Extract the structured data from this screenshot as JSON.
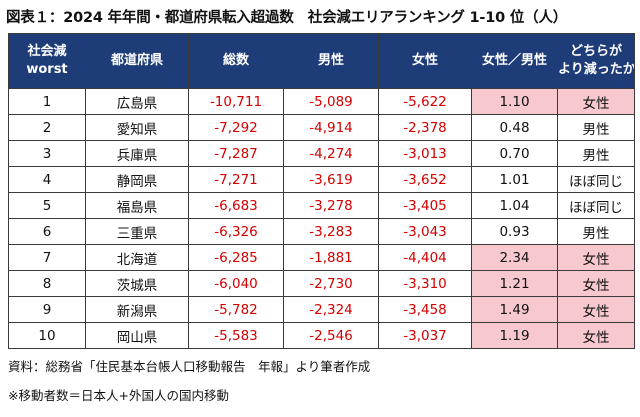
{
  "title": "図表１：2024 年年間・都道府県転入超過数　社会減エリアランキング 1-10 位（人）",
  "headers": {
    "rank_line1": "社会減",
    "rank_line2": "worst",
    "pref": "都道府県",
    "total": "総数",
    "male": "男性",
    "female": "女性",
    "ratio": "女性／男性",
    "which_line1": "どちらが",
    "which_line2": "より減ったか"
  },
  "rows": [
    {
      "rank": "1",
      "pref": "広島県",
      "total": "-10,711",
      "male": "-5,089",
      "female": "-5,622",
      "ratio": "1.10",
      "which": "女性",
      "highlight": true
    },
    {
      "rank": "2",
      "pref": "愛知県",
      "total": "-7,292",
      "male": "-4,914",
      "female": "-2,378",
      "ratio": "0.48",
      "which": "男性",
      "highlight": false
    },
    {
      "rank": "3",
      "pref": "兵庫県",
      "total": "-7,287",
      "male": "-4,274",
      "female": "-3,013",
      "ratio": "0.70",
      "which": "男性",
      "highlight": false
    },
    {
      "rank": "4",
      "pref": "静岡県",
      "total": "-7,271",
      "male": "-3,619",
      "female": "-3,652",
      "ratio": "1.01",
      "which": "ほぼ同じ",
      "highlight": false
    },
    {
      "rank": "5",
      "pref": "福島県",
      "total": "-6,683",
      "male": "-3,278",
      "female": "-3,405",
      "ratio": "1.04",
      "which": "ほぼ同じ",
      "highlight": false
    },
    {
      "rank": "6",
      "pref": "三重県",
      "total": "-6,326",
      "male": "-3,283",
      "female": "-3,043",
      "ratio": "0.93",
      "which": "男性",
      "highlight": false
    },
    {
      "rank": "7",
      "pref": "北海道",
      "total": "-6,285",
      "male": "-1,881",
      "female": "-4,404",
      "ratio": "2.34",
      "which": "女性",
      "highlight": true
    },
    {
      "rank": "8",
      "pref": "茨城県",
      "total": "-6,040",
      "male": "-2,730",
      "female": "-3,310",
      "ratio": "1.21",
      "which": "女性",
      "highlight": true
    },
    {
      "rank": "9",
      "pref": "新潟県",
      "total": "-5,782",
      "male": "-2,324",
      "female": "-3,458",
      "ratio": "1.49",
      "which": "女性",
      "highlight": true
    },
    {
      "rank": "10",
      "pref": "岡山県",
      "total": "-5,583",
      "male": "-2,546",
      "female": "-3,037",
      "ratio": "1.19",
      "which": "女性",
      "highlight": true
    }
  ],
  "colors": {
    "header_bg": "#1d3c78",
    "negative_text": "#d40000",
    "highlight_bg": "#f7c8ce"
  },
  "notes": {
    "source": "資料：総務省「住民基本台帳人口移動報告　年報」より筆者作成",
    "footnote": "※移動者数＝日本人+外国人の国内移動"
  }
}
